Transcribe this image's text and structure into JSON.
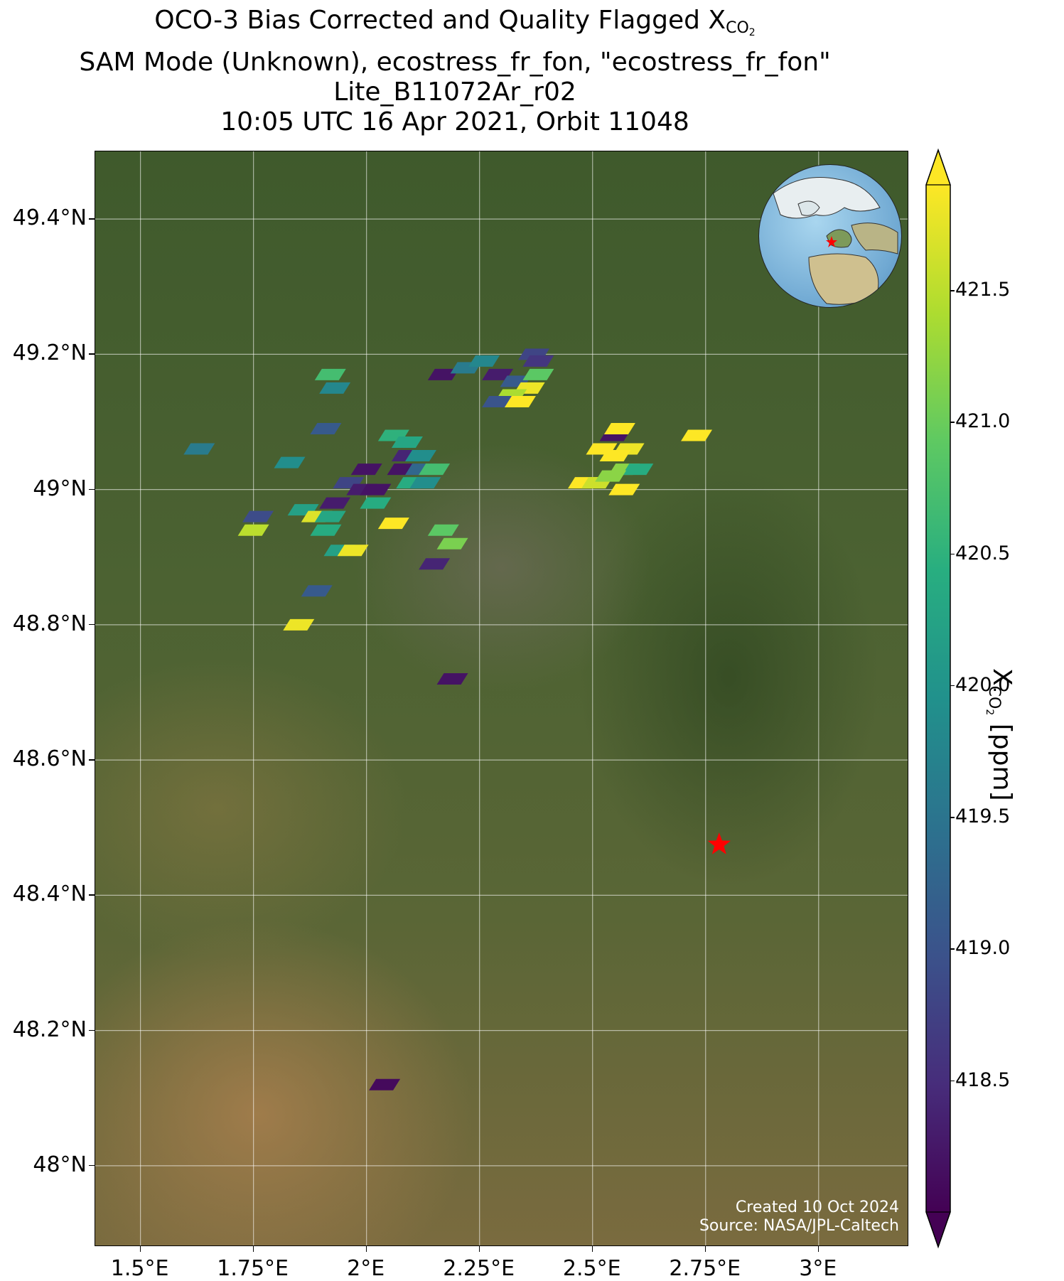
{
  "title": {
    "line1_prefix": "OCO-3 Bias Corrected and Quality Flagged X",
    "line1_sub": "CO",
    "line1_sub2": "2",
    "line2": "SAM Mode (Unknown), ecostress_fr_fon, \"ecostress_fr_fon\"",
    "line3": "Lite_B11072Ar_r02",
    "line4": "10:05 UTC 16 Apr 2021, Orbit 11048"
  },
  "map": {
    "lon_range": [
      1.4,
      3.2
    ],
    "lat_range": [
      47.88,
      49.5
    ],
    "lat_ticks": [
      {
        "value": 49.4,
        "label": "49.4°N"
      },
      {
        "value": 49.2,
        "label": "49.2°N"
      },
      {
        "value": 49.0,
        "label": "49°N"
      },
      {
        "value": 48.8,
        "label": "48.8°N"
      },
      {
        "value": 48.6,
        "label": "48.6°N"
      },
      {
        "value": 48.4,
        "label": "48.4°N"
      },
      {
        "value": 48.2,
        "label": "48.2°N"
      },
      {
        "value": 48.0,
        "label": "48°N"
      }
    ],
    "lon_ticks": [
      {
        "value": 1.5,
        "label": "1.5°E"
      },
      {
        "value": 1.75,
        "label": "1.75°E"
      },
      {
        "value": 2.0,
        "label": "2°E"
      },
      {
        "value": 2.25,
        "label": "2.25°E"
      },
      {
        "value": 2.5,
        "label": "2.5°E"
      },
      {
        "value": 2.75,
        "label": "2.75°E"
      },
      {
        "value": 3.0,
        "label": "3°E"
      }
    ],
    "target_marker": {
      "lon": 2.78,
      "lat": 48.475,
      "color": "#ff0000"
    },
    "credit_line1": "Created 10 Oct 2024",
    "credit_line2": "Source: NASA/JPL-Caltech"
  },
  "soundings": [
    {
      "lon": 2.17,
      "lat": 49.17,
      "xco2": 418.2
    },
    {
      "lon": 2.22,
      "lat": 49.18,
      "xco2": 419.6
    },
    {
      "lon": 2.26,
      "lat": 49.19,
      "xco2": 419.8
    },
    {
      "lon": 2.29,
      "lat": 49.17,
      "xco2": 418.3
    },
    {
      "lon": 2.33,
      "lat": 49.16,
      "xco2": 419.1
    },
    {
      "lon": 2.36,
      "lat": 49.15,
      "xco2": 421.8
    },
    {
      "lon": 2.38,
      "lat": 49.17,
      "xco2": 420.9
    },
    {
      "lon": 2.32,
      "lat": 49.14,
      "xco2": 421.4
    },
    {
      "lon": 2.29,
      "lat": 49.13,
      "xco2": 419.0
    },
    {
      "lon": 2.34,
      "lat": 49.13,
      "xco2": 421.9
    },
    {
      "lon": 2.37,
      "lat": 49.2,
      "xco2": 418.8
    },
    {
      "lon": 2.38,
      "lat": 49.19,
      "xco2": 418.6
    },
    {
      "lon": 1.92,
      "lat": 49.17,
      "xco2": 420.7
    },
    {
      "lon": 1.93,
      "lat": 49.15,
      "xco2": 419.8
    },
    {
      "lon": 1.91,
      "lat": 49.09,
      "xco2": 419.1
    },
    {
      "lon": 1.63,
      "lat": 49.06,
      "xco2": 419.6
    },
    {
      "lon": 1.83,
      "lat": 49.04,
      "xco2": 419.9
    },
    {
      "lon": 2.06,
      "lat": 49.08,
      "xco2": 420.5
    },
    {
      "lon": 2.09,
      "lat": 49.07,
      "xco2": 420.3
    },
    {
      "lon": 2.09,
      "lat": 49.05,
      "xco2": 418.4
    },
    {
      "lon": 2.12,
      "lat": 49.05,
      "xco2": 419.9
    },
    {
      "lon": 2.08,
      "lat": 49.03,
      "xco2": 418.2
    },
    {
      "lon": 2.12,
      "lat": 49.03,
      "xco2": 419.3
    },
    {
      "lon": 2.15,
      "lat": 49.03,
      "xco2": 420.7
    },
    {
      "lon": 2.1,
      "lat": 49.01,
      "xco2": 420.4
    },
    {
      "lon": 2.13,
      "lat": 49.01,
      "xco2": 419.9
    },
    {
      "lon": 2.0,
      "lat": 49.03,
      "xco2": 418.2
    },
    {
      "lon": 1.96,
      "lat": 49.01,
      "xco2": 418.8
    },
    {
      "lon": 1.99,
      "lat": 49.0,
      "xco2": 418.3
    },
    {
      "lon": 2.02,
      "lat": 49.0,
      "xco2": 418.2
    },
    {
      "lon": 2.02,
      "lat": 48.98,
      "xco2": 420.4
    },
    {
      "lon": 1.93,
      "lat": 48.98,
      "xco2": 418.3
    },
    {
      "lon": 1.86,
      "lat": 48.97,
      "xco2": 420.2
    },
    {
      "lon": 1.89,
      "lat": 48.96,
      "xco2": 421.7
    },
    {
      "lon": 1.92,
      "lat": 48.96,
      "xco2": 420.3
    },
    {
      "lon": 1.91,
      "lat": 48.94,
      "xco2": 420.4
    },
    {
      "lon": 1.76,
      "lat": 48.96,
      "xco2": 418.9
    },
    {
      "lon": 1.75,
      "lat": 48.94,
      "xco2": 421.5
    },
    {
      "lon": 2.06,
      "lat": 48.95,
      "xco2": 421.9
    },
    {
      "lon": 2.17,
      "lat": 48.94,
      "xco2": 420.9
    },
    {
      "lon": 2.19,
      "lat": 48.92,
      "xco2": 421.1
    },
    {
      "lon": 1.94,
      "lat": 48.91,
      "xco2": 420.2
    },
    {
      "lon": 1.97,
      "lat": 48.91,
      "xco2": 421.8
    },
    {
      "lon": 2.15,
      "lat": 48.89,
      "xco2": 418.4
    },
    {
      "lon": 1.89,
      "lat": 48.85,
      "xco2": 419.1
    },
    {
      "lon": 1.85,
      "lat": 48.8,
      "xco2": 421.8
    },
    {
      "lon": 2.19,
      "lat": 48.72,
      "xco2": 418.2
    },
    {
      "lon": 2.04,
      "lat": 48.12,
      "xco2": 418.1
    },
    {
      "lon": 2.55,
      "lat": 49.08,
      "xco2": 418.2
    },
    {
      "lon": 2.56,
      "lat": 49.09,
      "xco2": 421.9
    },
    {
      "lon": 2.58,
      "lat": 49.06,
      "xco2": 421.8
    },
    {
      "lon": 2.52,
      "lat": 49.06,
      "xco2": 421.9
    },
    {
      "lon": 2.55,
      "lat": 49.05,
      "xco2": 421.9
    },
    {
      "lon": 2.57,
      "lat": 49.03,
      "xco2": 421.2
    },
    {
      "lon": 2.6,
      "lat": 49.03,
      "xco2": 420.4
    },
    {
      "lon": 2.48,
      "lat": 49.01,
      "xco2": 421.9
    },
    {
      "lon": 2.51,
      "lat": 49.01,
      "xco2": 421.6
    },
    {
      "lon": 2.54,
      "lat": 49.02,
      "xco2": 421.2
    },
    {
      "lon": 2.57,
      "lat": 49.0,
      "xco2": 421.9
    },
    {
      "lon": 2.73,
      "lat": 49.08,
      "xco2": 421.9
    }
  ],
  "colorbar": {
    "vmin": 418.0,
    "vmax": 421.9,
    "ticks": [
      {
        "value": 418.5,
        "label": "418.5"
      },
      {
        "value": 419.0,
        "label": "419.0"
      },
      {
        "value": 419.5,
        "label": "419.5"
      },
      {
        "value": 420.0,
        "label": "420.0"
      },
      {
        "value": 420.5,
        "label": "420.5"
      },
      {
        "value": 421.0,
        "label": "421.0"
      },
      {
        "value": 421.5,
        "label": "421.5"
      }
    ],
    "label_prefix": "X",
    "label_sub": "CO",
    "label_sub2": "2",
    "label_suffix": " [ppm]",
    "colormap": "viridis"
  },
  "inset_globe": {
    "center_region": "Europe",
    "marker_color": "#ff0000"
  }
}
